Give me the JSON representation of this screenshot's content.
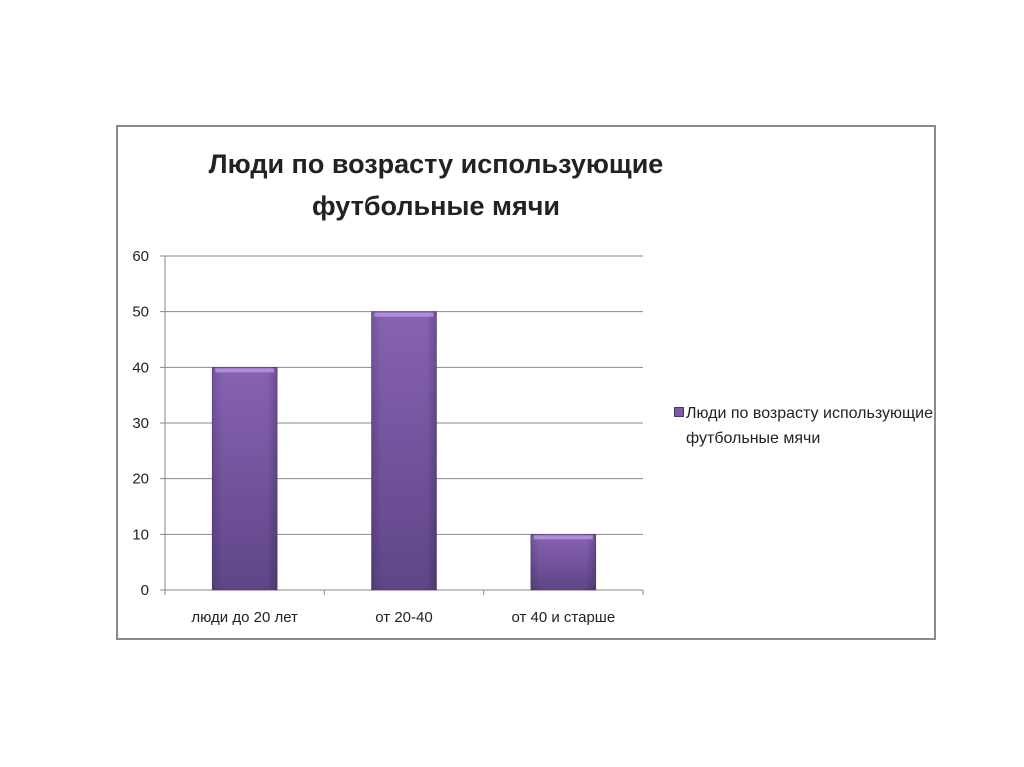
{
  "chart_data": {
    "type": "bar",
    "title": "Люди по возрасту использующие футбольные мячи",
    "title_lines": [
      "Люди по возрасту использующие",
      "футбольные мячи"
    ],
    "categories": [
      "люди до 20 лет",
      "от 20-40",
      "от 40 и старше"
    ],
    "series": [
      {
        "name": "Люди по возрасту использующие футбольные мячи",
        "values": [
          40,
          50,
          10
        ]
      }
    ],
    "yticks": [
      "0",
      "10",
      "20",
      "30",
      "40",
      "50",
      "60"
    ],
    "ylim": [
      0,
      60
    ],
    "xlabel": "",
    "ylabel": "",
    "grid": true,
    "legend_position": "right",
    "bar_color": "#7b5aa6"
  }
}
